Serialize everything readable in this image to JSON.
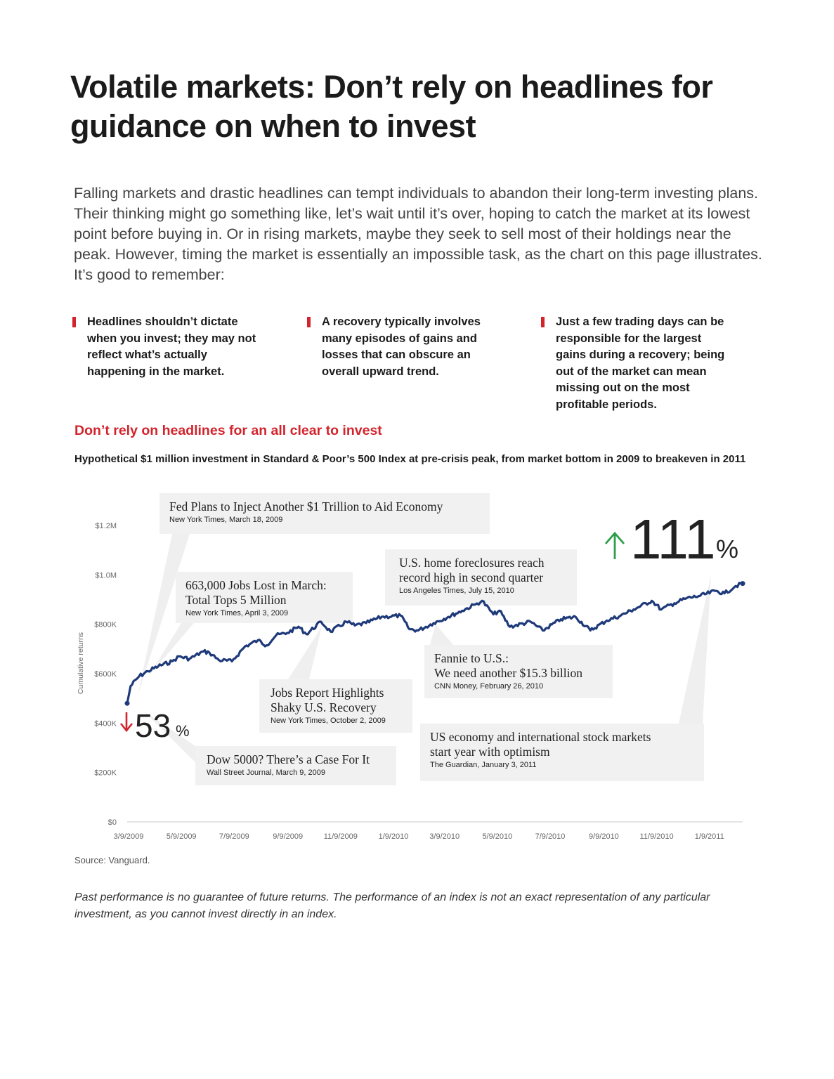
{
  "title_lines": [
    "Volatile markets: Don’t rely on headlines for",
    "guidance on when to invest"
  ],
  "intro": "Falling markets and drastic headlines can tempt individuals to abandon their long-term investing plans. Their thinking might go something like, let’s wait until it’s over, hoping to catch the market at its lowest point before buying in. Or in rising markets, maybe they seek to sell most of their holdings near the peak. However, timing the market is essentially an impossible task, as the chart on this page illustrates. It’s good to remember:",
  "bullets": [
    "Headlines shouldn’t dictate when you invest; they may not reflect what’s actually happening in the market.",
    "A recovery typically involves many episodes of gains and losses that can obscure an overall upward trend.",
    "Just a few trading days can be responsible for the largest gains during a recovery; being out of the market can mean missing out on the most profitable periods."
  ],
  "section_title": "Don’t rely on headlines for an all clear to invest",
  "chart_subtitle": "Hypothetical $1 million investment in Standard & Poor’s 500 Index at pre-crisis peak, from market bottom in 2009 to breakeven in 2011",
  "source": "Source: Vanguard.",
  "disclaimer": "Past performance is no guarantee of future returns. The performance of an index is not an exact representation of any particular investment, as you cannot invest directly in an index.",
  "colors": {
    "accent_red": "#d3242d",
    "line_navy": "#1f3a7a",
    "up_green": "#2e9e4a",
    "callout_bg": "#f1f1f1"
  },
  "chart_data": {
    "type": "line",
    "title": "",
    "ylabel": "Cumulative returns",
    "ylim": [
      0,
      1200000
    ],
    "yticks": [
      0,
      200000,
      400000,
      600000,
      800000,
      1000000,
      1200000
    ],
    "ytick_labels": [
      "$0",
      "$200K",
      "$400K",
      "$600K",
      "$800K",
      "$1.0M",
      "$1.2M"
    ],
    "xtick_labels": [
      "3/9/2009",
      "5/9/2009",
      "7/9/2009",
      "9/9/2009",
      "11/9/2009",
      "1/9/2010",
      "3/9/2010",
      "5/9/2010",
      "7/9/2010",
      "9/9/2010",
      "11/9/2010",
      "1/9/2011"
    ],
    "series": [
      {
        "values": [
          [
            "2009-03-09",
            480000
          ],
          [
            "2009-03-13",
            550000
          ],
          [
            "2009-03-23",
            590000
          ],
          [
            "2009-04-02",
            610000
          ],
          [
            "2009-04-14",
            630000
          ],
          [
            "2009-04-30",
            650000
          ],
          [
            "2009-05-08",
            670000
          ],
          [
            "2009-05-20",
            660000
          ],
          [
            "2009-06-05",
            690000
          ],
          [
            "2009-06-12",
            685000
          ],
          [
            "2009-06-23",
            655000
          ],
          [
            "2009-07-08",
            650000
          ],
          [
            "2009-07-23",
            710000
          ],
          [
            "2009-08-07",
            735000
          ],
          [
            "2009-08-17",
            715000
          ],
          [
            "2009-08-28",
            755000
          ],
          [
            "2009-09-10",
            765000
          ],
          [
            "2009-09-23",
            790000
          ],
          [
            "2009-10-02",
            760000
          ],
          [
            "2009-10-19",
            810000
          ],
          [
            "2009-10-30",
            770000
          ],
          [
            "2009-11-17",
            810000
          ],
          [
            "2009-11-27",
            795000
          ],
          [
            "2009-12-10",
            805000
          ],
          [
            "2009-12-28",
            830000
          ],
          [
            "2010-01-19",
            835000
          ],
          [
            "2010-01-29",
            780000
          ],
          [
            "2010-02-08",
            775000
          ],
          [
            "2010-02-26",
            805000
          ],
          [
            "2010-03-15",
            830000
          ],
          [
            "2010-03-31",
            855000
          ],
          [
            "2010-04-15",
            880000
          ],
          [
            "2010-04-23",
            895000
          ],
          [
            "2010-05-06",
            840000
          ],
          [
            "2010-05-13",
            855000
          ],
          [
            "2010-05-25",
            790000
          ],
          [
            "2010-06-18",
            810000
          ],
          [
            "2010-07-02",
            775000
          ],
          [
            "2010-07-23",
            820000
          ],
          [
            "2010-08-09",
            830000
          ],
          [
            "2010-08-26",
            775000
          ],
          [
            "2010-09-14",
            815000
          ],
          [
            "2010-09-30",
            835000
          ],
          [
            "2010-10-15",
            860000
          ],
          [
            "2010-11-05",
            895000
          ],
          [
            "2010-11-16",
            860000
          ],
          [
            "2010-12-01",
            885000
          ],
          [
            "2010-12-15",
            905000
          ],
          [
            "2010-12-31",
            915000
          ],
          [
            "2011-01-18",
            935000
          ],
          [
            "2011-01-28",
            925000
          ],
          [
            "2011-02-10",
            955000
          ],
          [
            "2011-02-18",
            965000
          ]
        ]
      }
    ],
    "annotations": {
      "low_pct": "53",
      "high_pct": "111",
      "pct_sign": "%",
      "headlines": [
        {
          "lines": [
            "Fed Plans to Inject Another $1 Trillion to Aid Economy"
          ],
          "source": "New York Times, March 18, 2009"
        },
        {
          "lines": [
            "663,000 Jobs Lost in March:",
            "Total Tops 5 Million"
          ],
          "source": "New York Times, April 3, 2009"
        },
        {
          "lines": [
            "Dow 5000? There’s a Case For It"
          ],
          "source": "Wall Street Journal, March 9, 2009"
        },
        {
          "lines": [
            "Jobs Report Highlights",
            "Shaky U.S. Recovery"
          ],
          "source": "New York Times, October 2, 2009"
        },
        {
          "lines": [
            "U.S. home foreclosures reach",
            "record high in second quarter"
          ],
          "source": "Los Angeles Times, July 15, 2010"
        },
        {
          "lines": [
            "Fannie to U.S.:",
            "We need another $15.3 billion"
          ],
          "source": "CNN Money, February 26, 2010"
        },
        {
          "lines": [
            "US economy and international stock markets",
            "start year with optimism"
          ],
          "source": "The Guardian, January 3, 2011"
        }
      ]
    }
  }
}
